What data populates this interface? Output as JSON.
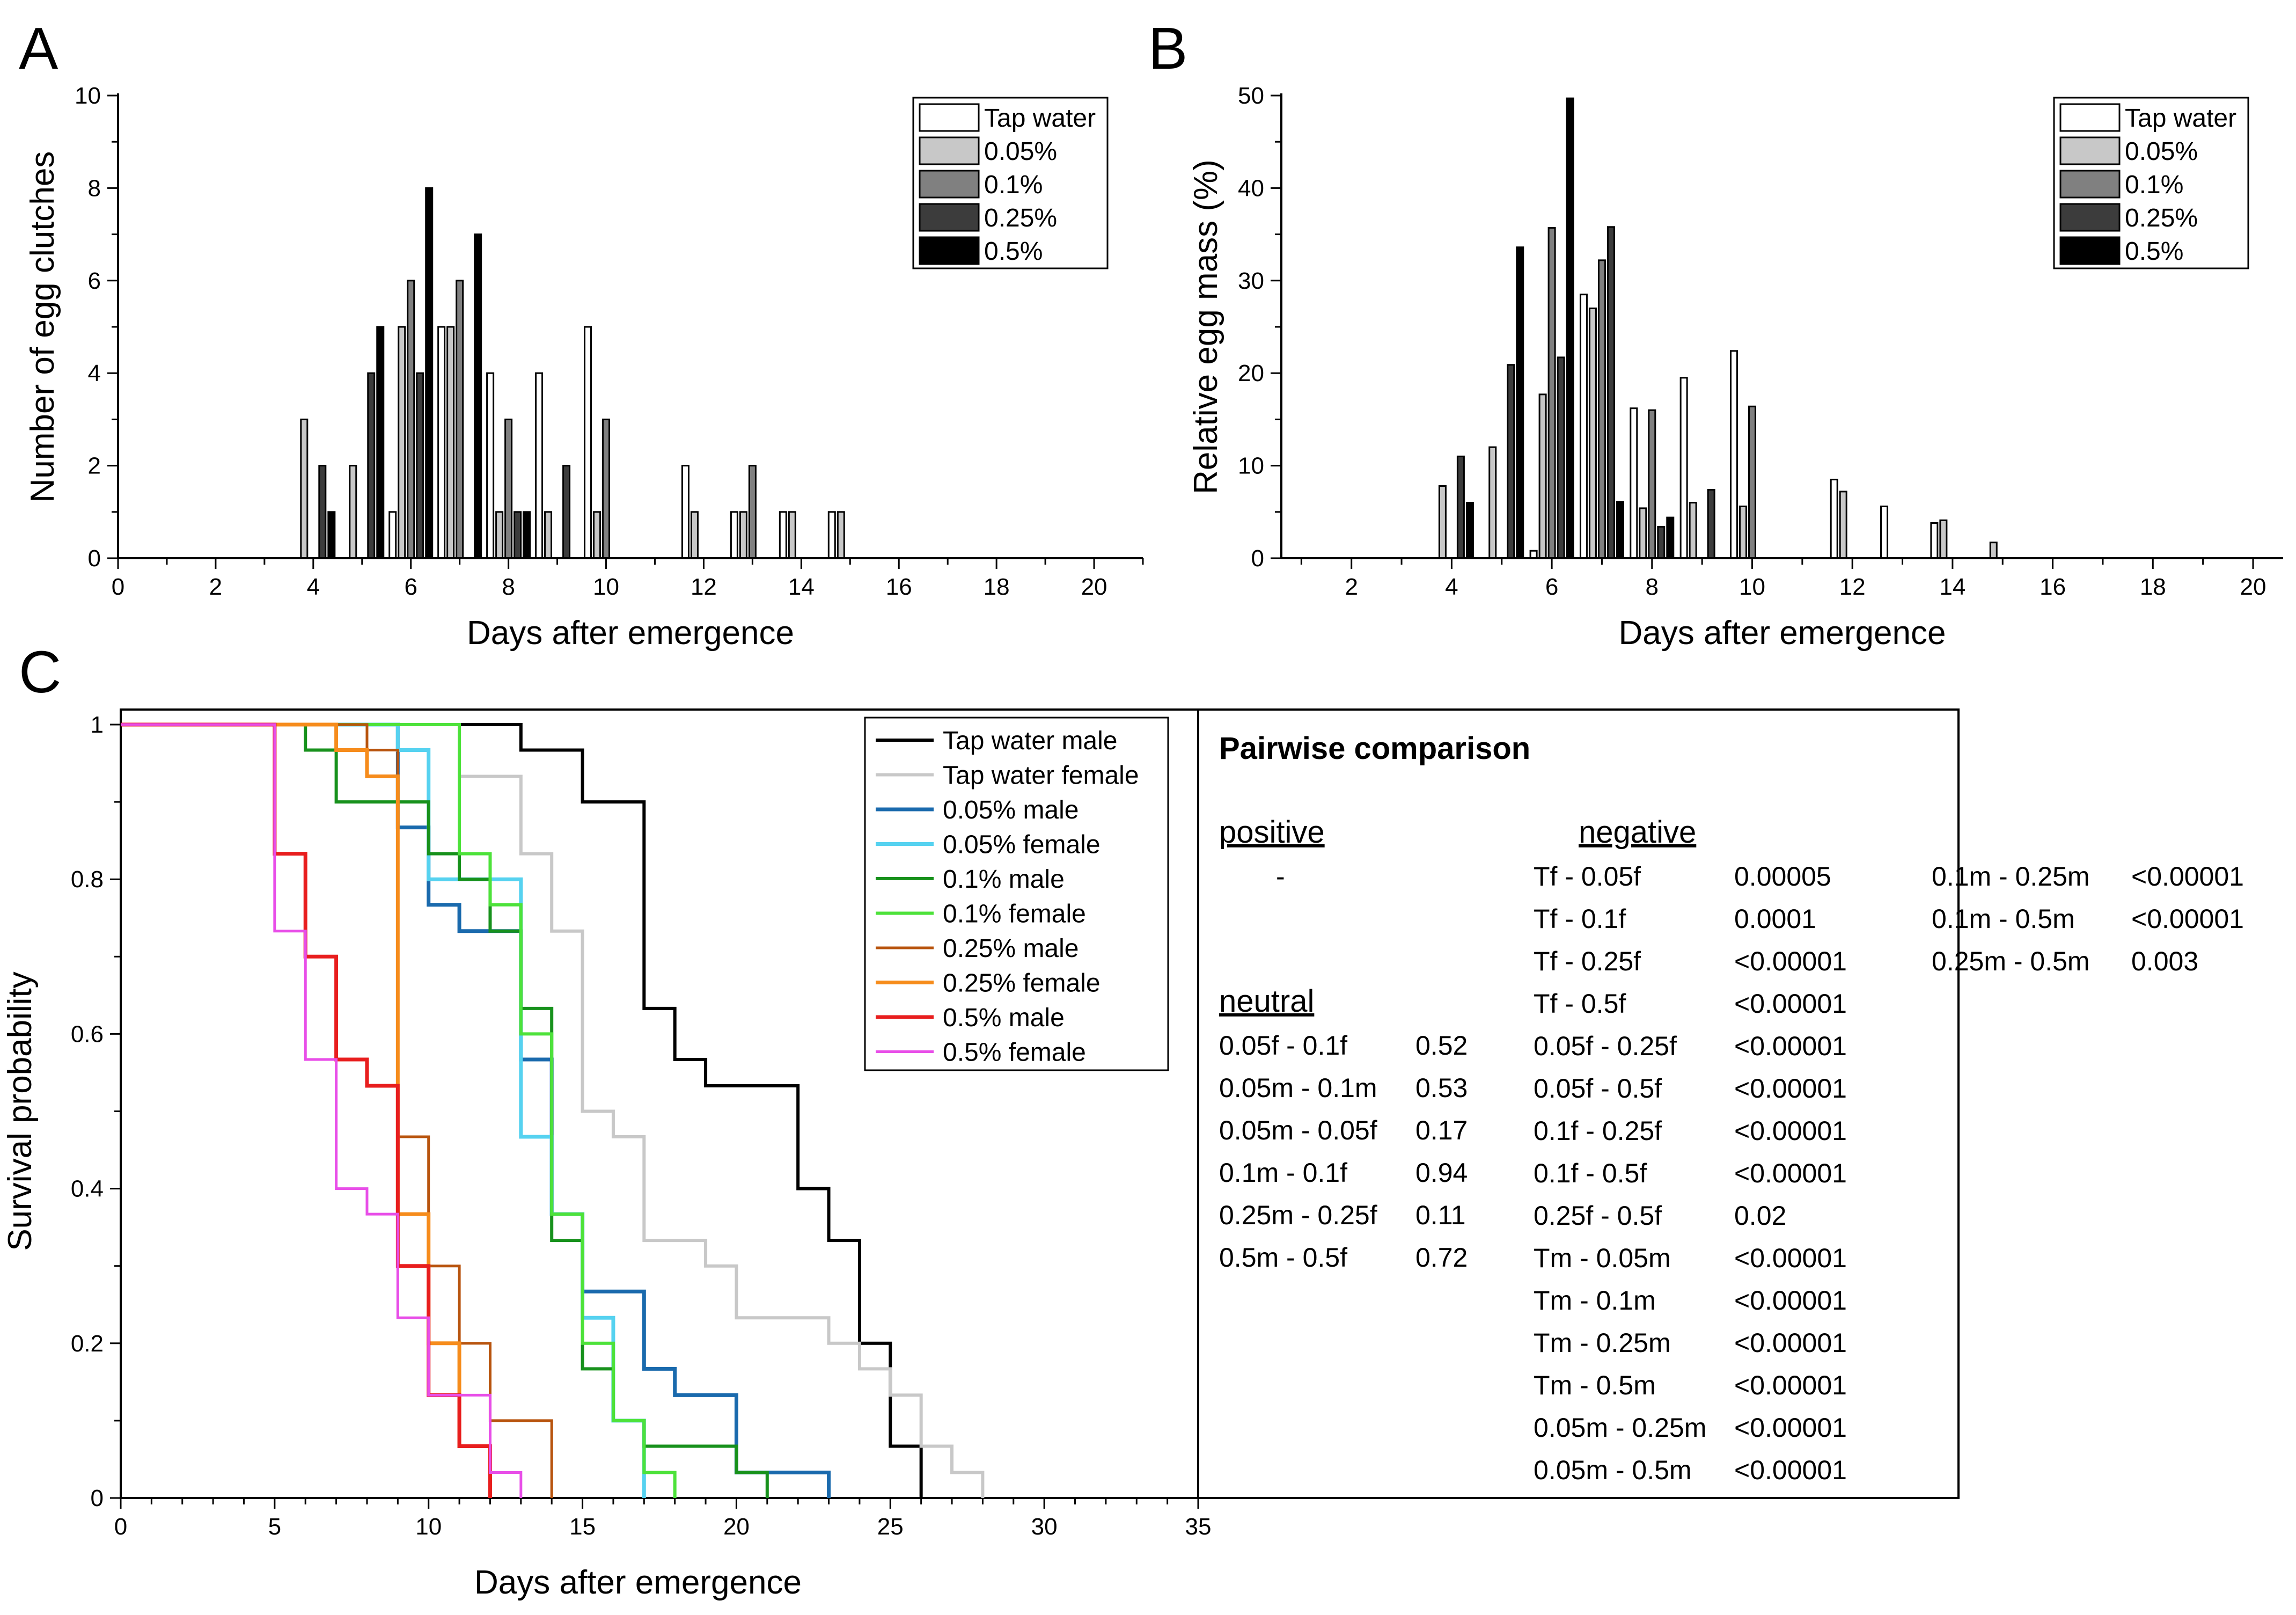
{
  "panels": {
    "a": "A",
    "b": "B",
    "c": "C"
  },
  "chart_data": [
    {
      "id": "A",
      "type": "bar",
      "xlabel": "Days after emergence",
      "ylabel": "Number of egg clutches",
      "xlim": [
        0,
        21
      ],
      "ylim": [
        0,
        10
      ],
      "xticks": [
        0,
        2,
        4,
        6,
        8,
        10,
        12,
        14,
        16,
        18,
        20
      ],
      "yticks": [
        0,
        2,
        4,
        6,
        8,
        10
      ],
      "series": [
        {
          "name": "Tap water",
          "color": "#ffffff",
          "x": [
            6,
            7,
            8,
            9,
            10,
            12,
            13,
            14,
            15
          ],
          "values": [
            1,
            5,
            4,
            4,
            5,
            2,
            1,
            1,
            1
          ]
        },
        {
          "name": "0.05%",
          "color": "#c8c8c8",
          "x": [
            4,
            5,
            6,
            7,
            8,
            9,
            10,
            12,
            13,
            14,
            15
          ],
          "values": [
            3,
            2,
            5,
            5,
            1,
            1,
            1,
            1,
            1,
            1,
            1
          ]
        },
        {
          "name": "0.1%",
          "color": "#808080",
          "x": [
            6,
            7,
            8,
            10,
            13
          ],
          "values": [
            6,
            6,
            3,
            3,
            2
          ]
        },
        {
          "name": "0.25%",
          "color": "#3c3c3c",
          "x": [
            4,
            5,
            6,
            8,
            9
          ],
          "values": [
            2,
            4,
            4,
            1,
            2
          ]
        },
        {
          "name": "0.5%",
          "color": "#000000",
          "x": [
            4,
            5,
            6,
            7,
            8
          ],
          "values": [
            1,
            5,
            8,
            7,
            1
          ]
        }
      ]
    },
    {
      "id": "B",
      "type": "bar",
      "xlabel": "Days after emergence",
      "ylabel": "Relative egg mass (%)",
      "xlim": [
        0.6,
        20.6
      ],
      "ylim": [
        0,
        50
      ],
      "xticks": [
        2,
        4,
        6,
        8,
        10,
        12,
        14,
        16,
        18,
        20
      ],
      "yticks": [
        0,
        10,
        20,
        30,
        40,
        50
      ],
      "series": [
        {
          "name": "Tap water",
          "color": "#ffffff",
          "x": [
            6,
            7,
            8,
            9,
            10,
            12,
            13,
            14
          ],
          "values": [
            0.8,
            28.5,
            16.2,
            19.5,
            22.4,
            8.5,
            5.6,
            3.8
          ]
        },
        {
          "name": "0.05%",
          "color": "#c8c8c8",
          "x": [
            4,
            5,
            6,
            7,
            8,
            9,
            10,
            12,
            14,
            15
          ],
          "values": [
            7.8,
            12,
            17.7,
            27,
            5.4,
            6,
            5.6,
            7.2,
            4.1,
            1.7
          ]
        },
        {
          "name": "0.1%",
          "color": "#808080",
          "x": [
            6,
            7,
            8,
            10
          ],
          "values": [
            35.7,
            32.2,
            16,
            16.4
          ]
        },
        {
          "name": "0.25%",
          "color": "#3c3c3c",
          "x": [
            4,
            5,
            6,
            7,
            8,
            9
          ],
          "values": [
            11,
            20.9,
            21.7,
            35.8,
            3.4,
            7.4
          ]
        },
        {
          "name": "0.5%",
          "color": "#000000",
          "x": [
            4,
            5,
            6,
            7,
            8
          ],
          "values": [
            6,
            33.6,
            49.7,
            6.1,
            4.4
          ]
        }
      ]
    },
    {
      "id": "C",
      "type": "line",
      "step": true,
      "xlabel": "Days after emergence",
      "ylabel": "Survival probability",
      "xlim": [
        0,
        35
      ],
      "ylim": [
        0,
        1
      ],
      "xticks": [
        0,
        5,
        10,
        15,
        20,
        25,
        30,
        35
      ],
      "yticks": [
        0,
        0.2,
        0.4,
        0.6,
        0.8,
        1
      ],
      "ytick_labels": [
        "0",
        "0.2",
        "0.4",
        "0.6",
        "0.8",
        "1"
      ],
      "series": [
        {
          "name": "Tap water male",
          "color": "#000000",
          "width": 6,
          "x": [
            0,
            13,
            15,
            17,
            18,
            19,
            22,
            23,
            24,
            25,
            26
          ],
          "y": [
            1,
            0.967,
            0.9,
            0.633,
            0.567,
            0.533,
            0.4,
            0.333,
            0.2,
            0.067,
            0
          ]
        },
        {
          "name": "Tap water female",
          "color": "#c8c8c8",
          "width": 6,
          "x": [
            0,
            11,
            13,
            14,
            15,
            16,
            17,
            19,
            20,
            23,
            24,
            25,
            26,
            27,
            28
          ],
          "y": [
            1,
            0.933,
            0.833,
            0.733,
            0.5,
            0.467,
            0.333,
            0.3,
            0.233,
            0.2,
            0.167,
            0.133,
            0.067,
            0.033,
            0
          ]
        },
        {
          "name": "0.05% male",
          "color": "#1a6aad",
          "width": 7,
          "x": [
            0,
            9,
            10,
            11,
            13,
            14,
            15,
            17,
            18,
            20,
            23
          ],
          "y": [
            1,
            0.867,
            0.767,
            0.733,
            0.567,
            0.367,
            0.267,
            0.167,
            0.133,
            0.033,
            0
          ]
        },
        {
          "name": "0.05% female",
          "color": "#56d2f0",
          "width": 7,
          "x": [
            0,
            9,
            10,
            13,
            14,
            15,
            16,
            17
          ],
          "y": [
            1,
            0.967,
            0.8,
            0.467,
            0.367,
            0.233,
            0.1,
            0
          ]
        },
        {
          "name": "0.1% male",
          "color": "#17911c",
          "width": 6,
          "x": [
            0,
            6,
            7,
            10,
            11,
            12,
            13,
            14,
            15,
            16,
            17,
            20,
            21
          ],
          "y": [
            1,
            0.967,
            0.9,
            0.833,
            0.8,
            0.733,
            0.633,
            0.333,
            0.167,
            0.1,
            0.067,
            0.033,
            0
          ]
        },
        {
          "name": "0.1% female",
          "color": "#4de23a",
          "width": 6,
          "x": [
            0,
            11,
            12,
            13,
            14,
            15,
            16,
            17,
            18
          ],
          "y": [
            1,
            0.833,
            0.767,
            0.6,
            0.367,
            0.2,
            0.1,
            0.033,
            0
          ]
        },
        {
          "name": "0.25% male",
          "color": "#b8540e",
          "width": 5,
          "x": [
            0,
            8,
            9,
            10,
            11,
            12,
            14
          ],
          "y": [
            1,
            0.967,
            0.467,
            0.3,
            0.2,
            0.1,
            0
          ]
        },
        {
          "name": "0.25% female",
          "color": "#f68c1c",
          "width": 7,
          "x": [
            0,
            7,
            8,
            9,
            10,
            11,
            12
          ],
          "y": [
            1,
            0.967,
            0.933,
            0.367,
            0.2,
            0.067,
            0
          ]
        },
        {
          "name": "0.5% male",
          "color": "#e81e1e",
          "width": 7,
          "x": [
            0,
            5,
            6,
            7,
            8,
            9,
            10,
            11,
            12
          ],
          "y": [
            1,
            0.833,
            0.7,
            0.567,
            0.533,
            0.3,
            0.133,
            0.067,
            0
          ]
        },
        {
          "name": "0.5% female",
          "color": "#e84ee8",
          "width": 5,
          "x": [
            0,
            5,
            6,
            7,
            8,
            9,
            10,
            12,
            13
          ],
          "y": [
            1,
            0.733,
            0.567,
            0.4,
            0.367,
            0.233,
            0.133,
            0.033,
            0
          ]
        }
      ]
    }
  ],
  "pairwise_table": {
    "title": "Pairwise comparison",
    "positive_heading": "positive",
    "positive_value": "-",
    "neutral_heading": "neutral",
    "negative_heading": "negative",
    "neutral": [
      {
        "pair": "0.05f - 0.1f",
        "p": "0.52"
      },
      {
        "pair": "0.05m - 0.1m",
        "p": "0.53"
      },
      {
        "pair": "0.05m - 0.05f",
        "p": "0.17"
      },
      {
        "pair": "0.1m - 0.1f",
        "p": "0.94"
      },
      {
        "pair": "0.25m - 0.25f",
        "p": "0.11"
      },
      {
        "pair": "0.5m - 0.5f",
        "p": "0.72"
      }
    ],
    "negative": [
      {
        "pair": "Tf - 0.05f",
        "p": "0.00005"
      },
      {
        "pair": "Tf - 0.1f",
        "p": "0.0001"
      },
      {
        "pair": "Tf - 0.25f",
        "p": "<0.00001"
      },
      {
        "pair": "Tf - 0.5f",
        "p": "<0.00001"
      },
      {
        "pair": "0.05f - 0.25f",
        "p": "<0.00001"
      },
      {
        "pair": "0.05f - 0.5f",
        "p": "<0.00001"
      },
      {
        "pair": "0.1f - 0.25f",
        "p": "<0.00001"
      },
      {
        "pair": "0.1f - 0.5f",
        "p": "<0.00001"
      },
      {
        "pair": "0.25f - 0.5f",
        "p": "0.02"
      },
      {
        "pair": "Tm - 0.05m",
        "p": "<0.00001"
      },
      {
        "pair": "Tm - 0.1m",
        "p": "<0.00001"
      },
      {
        "pair": "Tm - 0.25m",
        "p": "<0.00001"
      },
      {
        "pair": "Tm - 0.5m",
        "p": "<0.00001"
      },
      {
        "pair": "0.05m - 0.25m",
        "p": "<0.00001"
      },
      {
        "pair": "0.05m - 0.5m",
        "p": "<0.00001"
      }
    ],
    "negative_extra": [
      {
        "pair": "0.1m - 0.25m",
        "p": "<0.00001"
      },
      {
        "pair": "0.1m - 0.5m",
        "p": "<0.00001"
      },
      {
        "pair": "0.25m - 0.5m",
        "p": "0.003"
      }
    ]
  }
}
